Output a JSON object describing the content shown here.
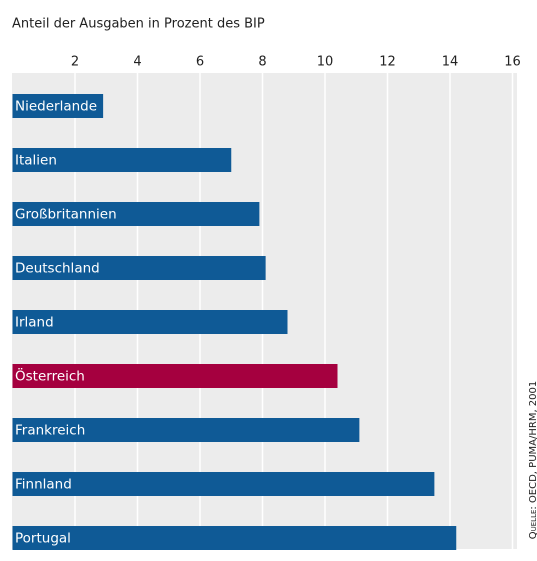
{
  "chart_data": {
    "type": "hbar",
    "title": "Anteil der Ausgaben in Prozent des BIP",
    "categories": [
      "Niederlande",
      "Italien",
      "Großbritannien",
      "Deutschland",
      "Irland",
      "Österreich",
      "Frankreich",
      "Finnland",
      "Portugal"
    ],
    "values": [
      2.9,
      7.0,
      7.9,
      8.1,
      8.8,
      10.4,
      11.1,
      13.5,
      14.2
    ],
    "colors": [
      "#0f5a96",
      "#0f5a96",
      "#0f5a96",
      "#0f5a96",
      "#0f5a96",
      "#a5003f",
      "#0f5a96",
      "#0f5a96",
      "#0f5a96"
    ],
    "xlim": [
      0,
      16
    ],
    "xticks": [
      2,
      4,
      6,
      8,
      10,
      12,
      14,
      16
    ],
    "grid": true,
    "source": "Quelle: OECD, PUMA/HRM, 2001"
  }
}
